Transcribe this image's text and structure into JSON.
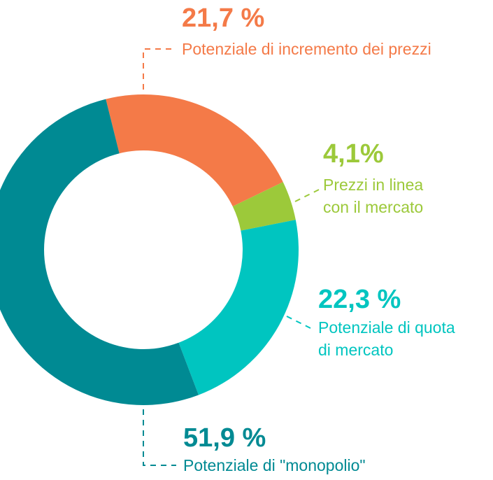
{
  "chart_data": {
    "type": "donut",
    "categories": [
      [
        "Potenziale di incremento dei prezzi"
      ],
      [
        "Prezzi in linea",
        "con il mercato"
      ],
      [
        "Potenziale di quota",
        "di mercato"
      ],
      [
        "Potenziale di \"monopolio\""
      ]
    ],
    "values": [
      21.7,
      4.1,
      22.3,
      51.9
    ],
    "value_labels": [
      "21,7 %",
      "4,1%",
      "22,3 %",
      "51,9 %"
    ],
    "colors": [
      "#f47a48",
      "#9cc93a",
      "#00c5c0",
      "#008a93"
    ]
  }
}
